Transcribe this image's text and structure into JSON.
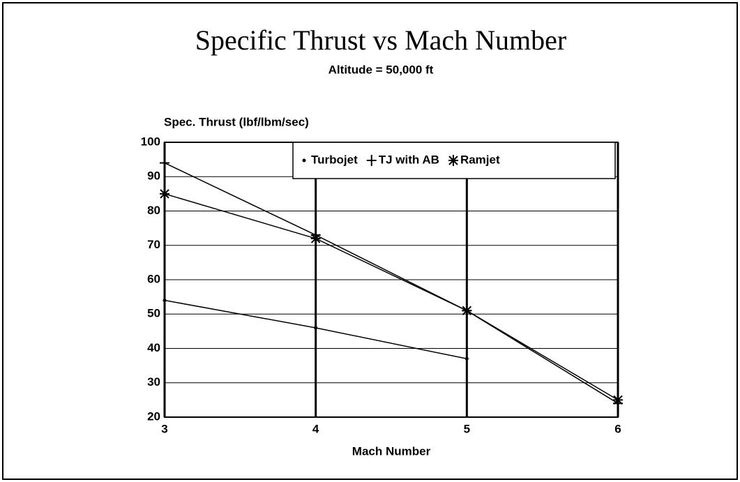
{
  "chart_data": {
    "type": "line",
    "title": "Specific Thrust vs Mach Number",
    "subtitle": "Altitude = 50,000 ft",
    "y_label": "Spec. Thrust (lbf/lbm/sec)",
    "x_label": "Mach Number",
    "x": [
      3,
      4,
      5,
      6
    ],
    "series": [
      {
        "name": "Turbojet",
        "color": "#000000",
        "marker": "dot",
        "values": [
          54,
          46,
          37,
          null
        ]
      },
      {
        "name": "TJ with AB",
        "color": "#000000",
        "marker": "plus",
        "values": [
          94,
          73,
          51,
          24
        ]
      },
      {
        "name": "Ramjet",
        "color": "#000000",
        "marker": "star",
        "values": [
          85,
          72,
          51,
          25
        ]
      }
    ],
    "xlim": [
      3,
      6
    ],
    "xticks": [
      3,
      4,
      5,
      6
    ],
    "ylim": [
      20,
      100
    ],
    "yticks": [
      20,
      30,
      40,
      50,
      60,
      70,
      80,
      90,
      100
    ],
    "grid": true,
    "legend": "upper right"
  }
}
